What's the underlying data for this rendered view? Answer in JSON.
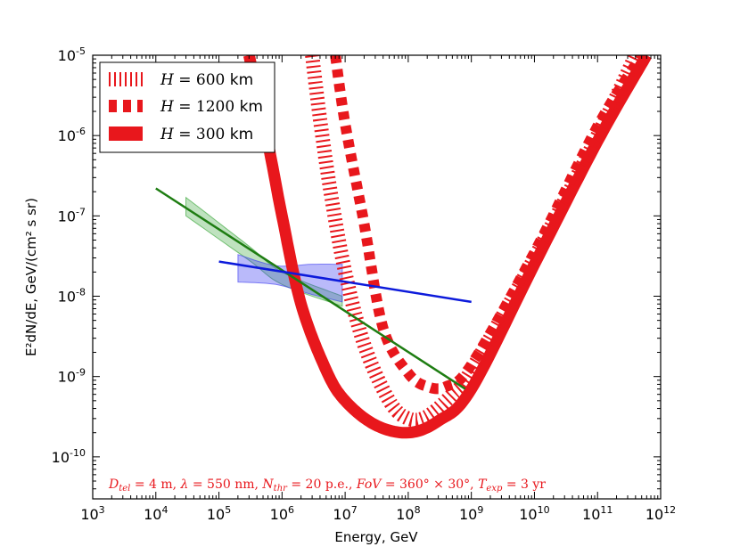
{
  "chart_data": {
    "type": "line",
    "xscale": "log",
    "yscale": "log",
    "xlim": [
      1000,
      1000000000000
    ],
    "ylim": [
      3e-11,
      1e-05
    ],
    "xlabel": "Energy, GeV",
    "ylabel": "E²dN/dE, GeV/(cm² s sr)",
    "x_ticks": [
      {
        "base": "10",
        "exp": "3",
        "value": 1000
      },
      {
        "base": "10",
        "exp": "4",
        "value": 10000
      },
      {
        "base": "10",
        "exp": "5",
        "value": 100000
      },
      {
        "base": "10",
        "exp": "6",
        "value": 1000000
      },
      {
        "base": "10",
        "exp": "7",
        "value": 10000000
      },
      {
        "base": "10",
        "exp": "8",
        "value": 100000000
      },
      {
        "base": "10",
        "exp": "9",
        "value": 1000000000
      },
      {
        "base": "10",
        "exp": "10",
        "value": 10000000000
      },
      {
        "base": "10",
        "exp": "11",
        "value": 100000000000
      },
      {
        "base": "10",
        "exp": "12",
        "value": 1000000000000
      }
    ],
    "y_ticks": [
      {
        "base": "10",
        "exp": "-10",
        "value": 1e-10
      },
      {
        "base": "10",
        "exp": "-9",
        "value": 1e-09
      },
      {
        "base": "10",
        "exp": "-8",
        "value": 1e-08
      },
      {
        "base": "10",
        "exp": "-7",
        "value": 1e-07
      },
      {
        "base": "10",
        "exp": "-6",
        "value": 1e-06
      },
      {
        "base": "10",
        "exp": "-5",
        "value": 1e-05
      }
    ],
    "legend_position": "top-left",
    "series": [
      {
        "name": "H = 600 km",
        "legend": {
          "var": "H",
          "eq": " = 600 ",
          "unit": "km"
        },
        "style": "dense-dash",
        "color": "#e8171c",
        "x": [
          3000000,
          4000000,
          6000000,
          10000000,
          20000000,
          50000000,
          100000000,
          200000000,
          500000000,
          1000000000,
          10000000000,
          100000000000,
          400000000000
        ],
        "y": [
          1e-05,
          1.6e-06,
          1.8e-07,
          2e-08,
          2.5e-09,
          5e-10,
          3e-10,
          3.2e-10,
          6e-10,
          1.2e-09,
          3e-08,
          1e-06,
          1e-05
        ]
      },
      {
        "name": "H = 1200 km",
        "legend": {
          "var": "H",
          "eq": " = 1200 ",
          "unit": "km"
        },
        "style": "thick-dash",
        "color": "#e8171c",
        "x": [
          7000000,
          10000000,
          20000000,
          40000000,
          100000000,
          200000000,
          400000000,
          1000000000,
          10000000000,
          100000000000,
          500000000000
        ],
        "y": [
          1e-05,
          1.4e-06,
          8e-08,
          4e-09,
          1.1e-09,
          7.5e-10,
          7.5e-10,
          1.4e-09,
          3.5e-08,
          1.3e-06,
          1e-05
        ]
      },
      {
        "name": "H = 300 km",
        "legend": {
          "var": "H",
          "eq": " = 300 ",
          "unit": "km"
        },
        "style": "solid-thick",
        "color": "#e8171c",
        "x": [
          300000,
          600000,
          1000000,
          2000000,
          5000000,
          10000000,
          30000000,
          100000000,
          300000000,
          1000000000,
          10000000000,
          100000000000,
          600000000000
        ],
        "y": [
          1e-05,
          8e-07,
          1e-07,
          8e-09,
          1.2e-09,
          5e-10,
          2.5e-10,
          2e-10,
          2.8e-10,
          7e-10,
          2.5e-08,
          8.5e-07,
          1e-05
        ]
      },
      {
        "name": "green power law",
        "style": "thin",
        "color": "#1e7d12",
        "x": [
          10000,
          800000000
        ],
        "y": [
          2.2e-07,
          7e-10
        ]
      },
      {
        "name": "blue power law",
        "style": "thin",
        "color": "#0c1adb",
        "x": [
          100000,
          1000000000
        ],
        "y": [
          2.7e-08,
          8.5e-09
        ]
      }
    ],
    "bands": [
      {
        "color": "#2ca02c",
        "opacity": 0.3,
        "upper": {
          "x": [
            30000,
            300000,
            1000000,
            9000000
          ],
          "y": [
            1.7e-07,
            4.2e-08,
            2e-08,
            1e-08
          ]
        },
        "lower": {
          "x": [
            30000,
            300000,
            1000000,
            9000000
          ],
          "y": [
            1e-07,
            2.8e-08,
            1.4e-08,
            7.5e-09
          ]
        }
      },
      {
        "color": "#3838f0",
        "opacity": 0.35,
        "upper": {
          "x": [
            200000,
            800000,
            3000000,
            9000000
          ],
          "y": [
            3.3e-08,
            2.4e-08,
            2.5e-08,
            2.5e-08
          ]
        },
        "lower": {
          "x": [
            200000,
            800000,
            3000000,
            9000000
          ],
          "y": [
            1.5e-08,
            1.4e-08,
            1.05e-08,
            8.5e-09
          ]
        }
      }
    ],
    "annotation": "D_tel = 4 m,  λ = 550 nm,  N_thr = 20 p.e.,  FoV = 360° × 30°,  T_exp = 3 yr"
  },
  "annotation_parts": {
    "d": "D",
    "d_sub": "tel",
    "d_val": " = 4 m,  ",
    "lam": "λ",
    "lam_val": " = 550 nm,  ",
    "n": "N",
    "n_sub": "thr",
    "n_val": " = 20 p.e.,  ",
    "fov": "FoV",
    "fov_val": " = 360° × 30°,  ",
    "t": "T",
    "t_sub": "exp",
    "t_val": " = 3 yr"
  },
  "colors": {
    "red": "#e8171c",
    "green": "#1e7d12",
    "blue": "#0c1adb"
  }
}
